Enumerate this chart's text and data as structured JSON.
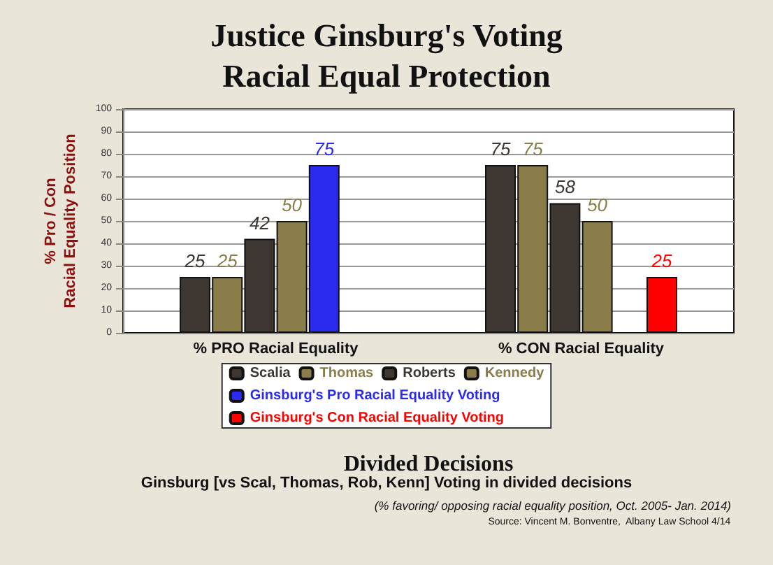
{
  "chart_data": {
    "type": "bar",
    "title": "Justice Ginsburg's Voting\nRacial Equal Protection",
    "categories": [
      "% PRO Racial Equality",
      "% CON Racial Equality"
    ],
    "series": [
      {
        "name": "Scalia",
        "color": "#3d3631",
        "values": [
          25,
          75
        ]
      },
      {
        "name": "Thomas",
        "color": "#8b7d4a",
        "values": [
          25,
          75
        ]
      },
      {
        "name": "Roberts",
        "color": "#3d3631",
        "values": [
          42,
          58
        ]
      },
      {
        "name": "Kennedy",
        "color": "#8b7d4a",
        "values": [
          50,
          50
        ]
      },
      {
        "name": "Ginsburg's Pro Racial Equality Voting",
        "color": "#2b2bf0",
        "values": [
          75,
          null
        ]
      },
      {
        "name": "Ginsburg's Con Racial Equality Voting",
        "color": "#ff0000",
        "values": [
          null,
          25
        ]
      }
    ],
    "ylim": [
      0,
      100
    ],
    "yticks": [
      0,
      10,
      20,
      30,
      40,
      50,
      60,
      70,
      80,
      90,
      100
    ],
    "ylabel": "% Pro / Con\nRacial Equality Position",
    "xlabel": "Divided Decisions",
    "annotations": [
      "Ginsburg [vs Scal, Thomas, Rob, Kenn] Voting in divided decisions",
      "(% favoring/ opposing racial equality position, Oct. 2005- Jan. 2014)",
      "Source: Vincent M. Bonventre,  Albany Law School 4/14"
    ],
    "grid": "y",
    "legend": "bottom",
    "data_labels": true
  }
}
